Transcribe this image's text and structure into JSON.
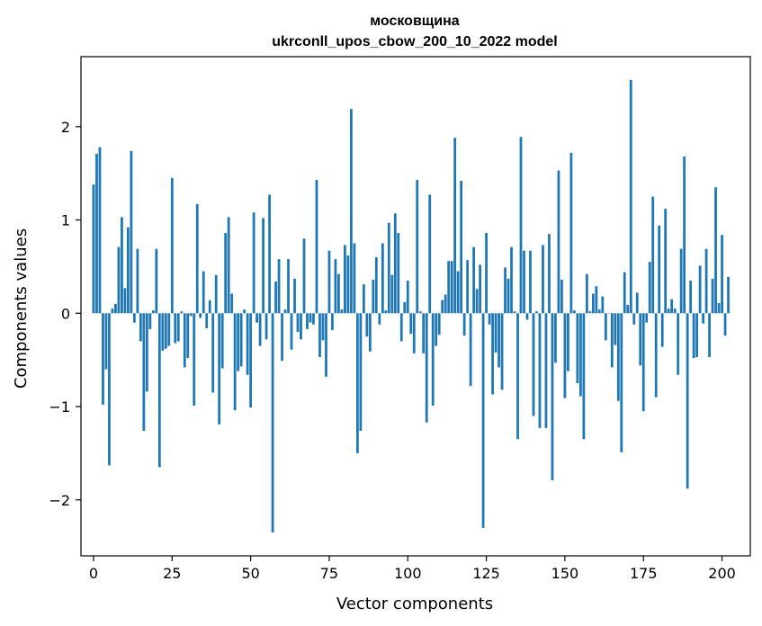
{
  "chart_data": {
    "type": "bar",
    "title": "московщина",
    "subtitle": "ukrconll_upos_cbow_200_10_2022 model",
    "xlabel": "Vector components",
    "ylabel": "Components values",
    "xlim": [
      -4,
      209
    ],
    "ylim": [
      -2.6,
      2.75
    ],
    "xticks": [
      0,
      25,
      50,
      75,
      100,
      125,
      150,
      175,
      200
    ],
    "yticks": [
      -2,
      -1,
      0,
      1,
      2
    ],
    "ytick_labels": [
      "−2",
      "−1",
      "0",
      "1",
      "2"
    ],
    "bar_color": "#1f77b4",
    "grid": false,
    "values": [
      1.38,
      1.71,
      1.78,
      -0.98,
      -0.6,
      -1.63,
      0.05,
      0.1,
      0.71,
      1.03,
      0.27,
      0.92,
      1.74,
      -0.1,
      0.69,
      -0.3,
      -1.26,
      -0.84,
      -0.17,
      0.03,
      0.69,
      -1.65,
      -0.4,
      -0.38,
      -0.35,
      1.45,
      -0.32,
      -0.3,
      0.02,
      -0.58,
      -0.48,
      -0.03,
      -0.99,
      1.17,
      -0.05,
      0.45,
      -0.16,
      0.14,
      -0.85,
      0.41,
      -1.19,
      -0.59,
      0.86,
      1.03,
      0.21,
      -1.04,
      -0.62,
      -0.57,
      0.04,
      -0.66,
      -1.01,
      1.08,
      -0.1,
      -0.35,
      1.02,
      -0.28,
      1.27,
      -2.35,
      0.34,
      0.58,
      -0.51,
      0.04,
      0.58,
      -0.39,
      0.37,
      -0.2,
      -0.28,
      0.8,
      -0.17,
      -0.1,
      -0.12,
      1.43,
      -0.47,
      -0.29,
      -0.68,
      0.67,
      -0.18,
      0.58,
      0.42,
      0.04,
      0.73,
      0.62,
      2.19,
      0.75,
      -1.5,
      -1.26,
      0.31,
      -0.25,
      -0.41,
      0.36,
      0.6,
      -0.12,
      0.75,
      0.03,
      0.97,
      0.41,
      1.07,
      0.86,
      -0.3,
      0.12,
      0.35,
      -0.22,
      -0.43,
      1.43,
      0.02,
      -0.43,
      -1.17,
      1.27,
      -0.99,
      -0.35,
      -0.23,
      0.14,
      0.2,
      0.56,
      0.56,
      1.88,
      0.45,
      1.42,
      -0.24,
      0.57,
      -0.78,
      0.71,
      0.26,
      0.52,
      -2.3,
      0.86,
      -0.12,
      -0.87,
      -0.42,
      -0.58,
      -0.82,
      0.49,
      0.37,
      0.71,
      0.02,
      -1.35,
      1.89,
      0.67,
      -0.07,
      0.67,
      -1.1,
      0.02,
      -1.23,
      0.73,
      -1.23,
      0.85,
      -1.79,
      -0.53,
      1.53,
      0.36,
      -0.91,
      -0.62,
      1.72,
      0.03,
      -0.75,
      -0.89,
      -1.35,
      0.42,
      0.02,
      0.21,
      0.29,
      0.04,
      0.18,
      -0.29,
      0.0,
      -0.58,
      -0.34,
      -0.94,
      -1.49,
      0.44,
      0.09,
      2.5,
      -0.12,
      0.22,
      -0.56,
      -1.05,
      -0.1,
      0.55,
      1.25,
      -0.9,
      0.94,
      -0.36,
      1.12,
      0.05,
      0.15,
      0.05,
      -0.66,
      0.69,
      1.68,
      -1.88,
      0.35,
      -0.48,
      -0.47,
      0.51,
      -0.11,
      0.69,
      -0.47,
      0.37,
      1.35,
      0.11,
      0.84,
      -0.24,
      0.39
    ]
  }
}
